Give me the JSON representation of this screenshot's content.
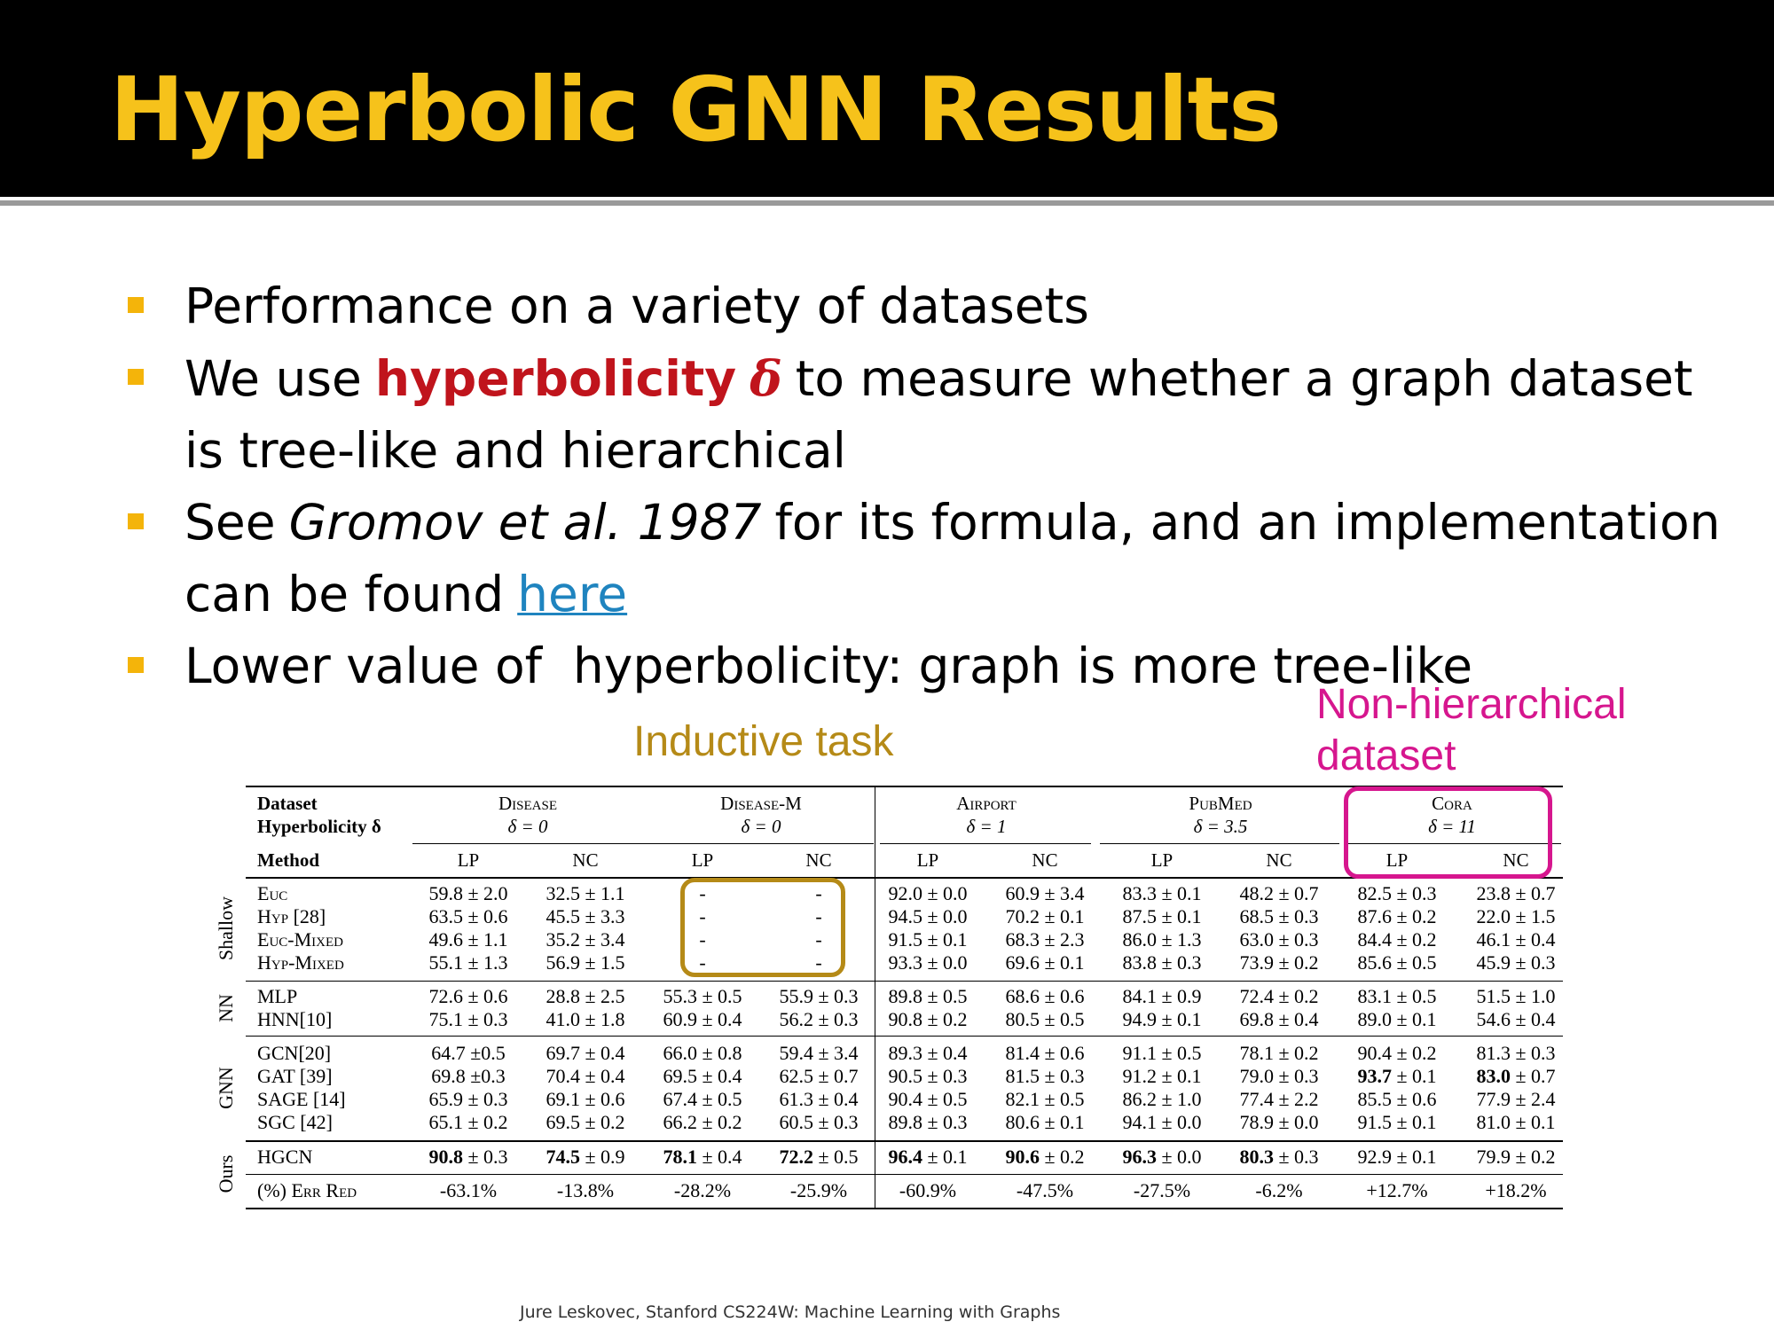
{
  "slide": {
    "title": "Hyperbolic GNN Results",
    "footer": "Jure Leskovec, Stanford CS224W: Machine Learning with Graphs"
  },
  "bullets": {
    "b1": {
      "text": "Performance on a variety of datasets"
    },
    "b2": {
      "pre": "We use",
      "highlight": "hyperbolicity",
      "symbol": "δ",
      "post": "to measure whether a graph dataset is tree-like and hierarchical"
    },
    "b3": {
      "pre": "See",
      "citation": "Gromov et al. 1987",
      "mid": "for its formula, and an implementation can be found",
      "link": "here"
    },
    "b4": {
      "text": "Lower value of  hyperbolicity: graph is more tree-like"
    }
  },
  "annotations": {
    "inductive": "Inductive task",
    "nonhier_1": "Non-hierarchical",
    "nonhier_2": "dataset"
  },
  "colors": {
    "title": "#f6c21b",
    "bullet_marker": "#f4b40a",
    "highlight": "#c0141c",
    "link": "#1f84bf",
    "inductive": "#b58a17",
    "non_hierarchical": "#d6168e"
  },
  "table": {
    "corner": {
      "dataset": "Dataset",
      "hyperbolicity": "Hyperbolicity δ",
      "method": "Method"
    },
    "datasets": [
      {
        "name": "Disease",
        "delta": "δ = 0"
      },
      {
        "name": "Disease-M",
        "delta": "δ = 0"
      },
      {
        "name": "Airport",
        "delta": "δ = 1"
      },
      {
        "name": "PubMed",
        "delta": "δ = 3.5"
      },
      {
        "name": "Cora",
        "delta": "δ = 11"
      }
    ],
    "metrics": [
      "LP",
      "NC",
      "LP",
      "NC",
      "LP",
      "NC",
      "LP",
      "NC",
      "LP",
      "NC"
    ],
    "groups": [
      {
        "name": "Shallow",
        "rows": [
          {
            "method": "Euc",
            "cells": [
              "59.8 ± 2.0",
              "32.5 ± 1.1",
              "-",
              "-",
              "92.0 ± 0.0",
              "60.9 ± 3.4",
              "83.3 ± 0.1",
              "48.2 ± 0.7",
              "82.5 ± 0.3",
              "23.8 ± 0.7"
            ]
          },
          {
            "method": "Hyp [28]",
            "cells": [
              "63.5 ± 0.6",
              "45.5 ± 3.3",
              "-",
              "-",
              "94.5 ± 0.0",
              "70.2 ± 0.1",
              "87.5 ± 0.1",
              "68.5 ± 0.3",
              "87.6 ± 0.2",
              "22.0 ± 1.5"
            ]
          },
          {
            "method": "Euc-Mixed",
            "cells": [
              "49.6 ± 1.1",
              "35.2 ± 3.4",
              "-",
              "-",
              "91.5 ± 0.1",
              "68.3 ± 2.3",
              "86.0 ± 1.3",
              "63.0 ± 0.3",
              "84.4 ± 0.2",
              "46.1 ± 0.4"
            ]
          },
          {
            "method": "Hyp-Mixed",
            "cells": [
              "55.1 ± 1.3",
              "56.9 ± 1.5",
              "-",
              "-",
              "93.3 ± 0.0",
              "69.6 ± 0.1",
              "83.8 ± 0.3",
              "73.9 ± 0.2",
              "85.6 ± 0.5",
              "45.9 ± 0.3"
            ]
          }
        ]
      },
      {
        "name": "NN",
        "rows": [
          {
            "method": "MLP",
            "cells": [
              "72.6 ± 0.6",
              "28.8 ± 2.5",
              "55.3 ± 0.5",
              "55.9 ± 0.3",
              "89.8 ± 0.5",
              "68.6 ± 0.6",
              "84.1 ± 0.9",
              "72.4 ± 0.2",
              "83.1 ± 0.5",
              "51.5 ± 1.0"
            ]
          },
          {
            "method": "HNN[10]",
            "cells": [
              "75.1 ± 0.3",
              "41.0 ± 1.8",
              "60.9 ± 0.4",
              "56.2 ± 0.3",
              "90.8 ± 0.2",
              "80.5 ± 0.5",
              "94.9 ± 0.1",
              "69.8 ± 0.4",
              "89.0 ± 0.1",
              "54.6 ± 0.4"
            ]
          }
        ]
      },
      {
        "name": "GNN",
        "rows": [
          {
            "method": "GCN[20]",
            "cells": [
              "64.7 ±0.5",
              "69.7 ± 0.4",
              "66.0 ± 0.8",
              "59.4 ± 3.4",
              "89.3 ± 0.4",
              "81.4 ± 0.6",
              "91.1 ± 0.5",
              "78.1 ± 0.2",
              "90.4 ± 0.2",
              "81.3 ± 0.3"
            ]
          },
          {
            "method": "GAT [39]",
            "cells": [
              "69.8 ±0.3",
              "70.4 ± 0.4",
              "69.5 ± 0.4",
              "62.5 ± 0.7",
              "90.5 ± 0.3",
              "81.5 ± 0.3",
              "91.2 ± 0.1",
              "79.0 ± 0.3",
              "93.7 ± 0.1",
              "83.0 ± 0.7"
            ]
          },
          {
            "method": "SAGE [14]",
            "cells": [
              "65.9 ± 0.3",
              "69.1 ± 0.6",
              "67.4 ± 0.5",
              "61.3 ± 0.4",
              "90.4 ± 0.5",
              "82.1 ± 0.5",
              "86.2 ± 1.0",
              "77.4 ± 2.2",
              "85.5 ± 0.6",
              "77.9 ± 2.4"
            ]
          },
          {
            "method": "SGC [42]",
            "cells": [
              "65.1 ± 0.2",
              "69.5 ± 0.2",
              "66.2 ± 0.2",
              "60.5 ± 0.3",
              "89.8 ± 0.3",
              "80.6 ± 0.1",
              "94.1 ± 0.0",
              "78.9 ± 0.0",
              "91.5 ± 0.1",
              "81.0 ± 0.1"
            ]
          }
        ]
      },
      {
        "name": "Ours",
        "rows": [
          {
            "method": "HGCN",
            "cells": [
              "90.8 ± 0.3",
              "74.5 ± 0.9",
              "78.1 ± 0.4",
              "72.2 ± 0.5",
              "96.4 ± 0.1",
              "90.6 ± 0.2",
              "96.3 ± 0.0",
              "80.3 ± 0.3",
              "92.9 ± 0.1",
              "79.9 ± 0.2"
            ]
          },
          {
            "method": "(%) Err Red",
            "cells": [
              "-63.1%",
              "-13.8%",
              "-28.2%",
              "-25.9%",
              "-60.9%",
              "-47.5%",
              "-27.5%",
              "-6.2%",
              "+12.7%",
              "+18.2%"
            ]
          }
        ]
      }
    ]
  }
}
